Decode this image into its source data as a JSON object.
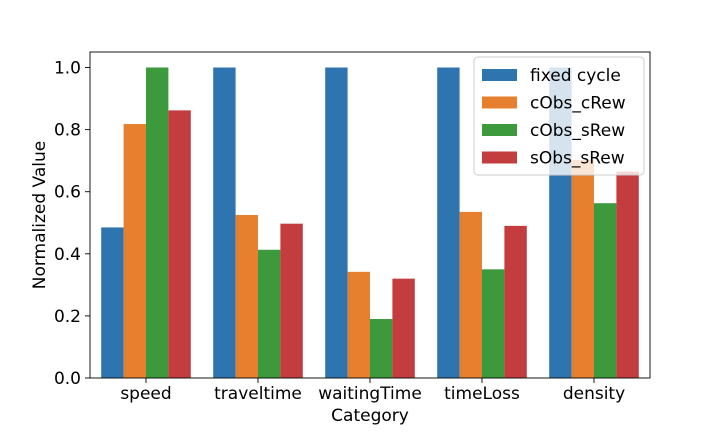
{
  "chart_data": {
    "type": "bar",
    "xlabel": "Category",
    "ylabel": "Normalized Value",
    "categories": [
      "speed",
      "traveltime",
      "waitingTime",
      "timeLoss",
      "density"
    ],
    "ylim": [
      0,
      1.05
    ],
    "yticks": [
      "0.0",
      "0.2",
      "0.4",
      "0.6",
      "0.8",
      "1.0"
    ],
    "grid": false,
    "legend_position": "top-right",
    "series": [
      {
        "name": "fixed cycle",
        "color": "#2e75b0",
        "values": [
          0.485,
          1.0,
          1.0,
          1.0,
          1.0
        ]
      },
      {
        "name": "cObs_cRew",
        "color": "#e67f2e",
        "values": [
          0.818,
          0.525,
          0.342,
          0.535,
          0.703
        ]
      },
      {
        "name": "cObs_sRew",
        "color": "#3c9a3c",
        "values": [
          1.0,
          0.413,
          0.19,
          0.35,
          0.563
        ]
      },
      {
        "name": "sObs_sRew",
        "color": "#c43d3e",
        "values": [
          0.862,
          0.497,
          0.32,
          0.49,
          0.665
        ]
      }
    ]
  }
}
